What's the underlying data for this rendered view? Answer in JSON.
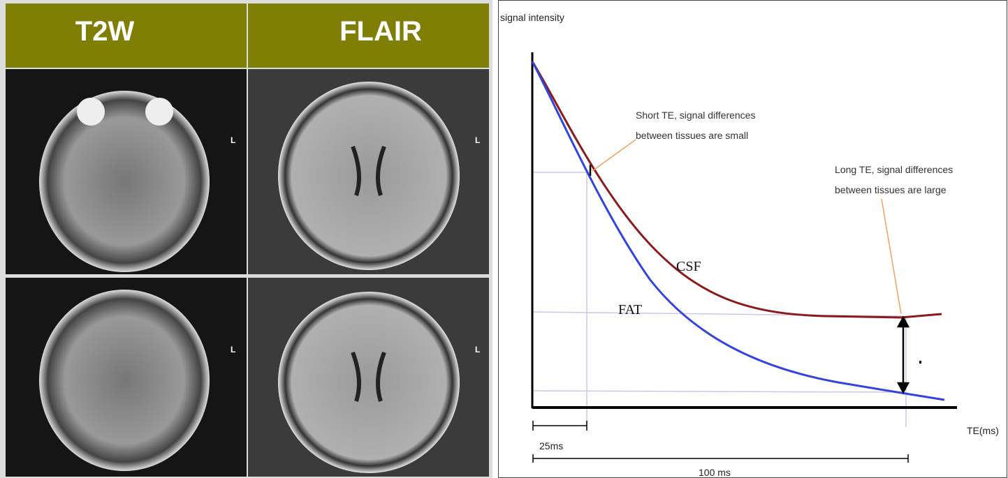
{
  "panels": {
    "headers": [
      "T2W",
      "FLAIR"
    ],
    "orientation_label": "L"
  },
  "diagram": {
    "y_axis_label": "signal intensity",
    "x_axis_label": "TE(ms)",
    "annotations": [
      {
        "lines": [
          "Short TE, signal differences",
          "between tissues are small"
        ]
      },
      {
        "lines": [
          "Long TE, signal differences",
          "between tissues are large"
        ]
      }
    ],
    "curves": [
      "CSF",
      "FAT"
    ],
    "intervals": [
      "25ms",
      "100 ms"
    ]
  }
}
